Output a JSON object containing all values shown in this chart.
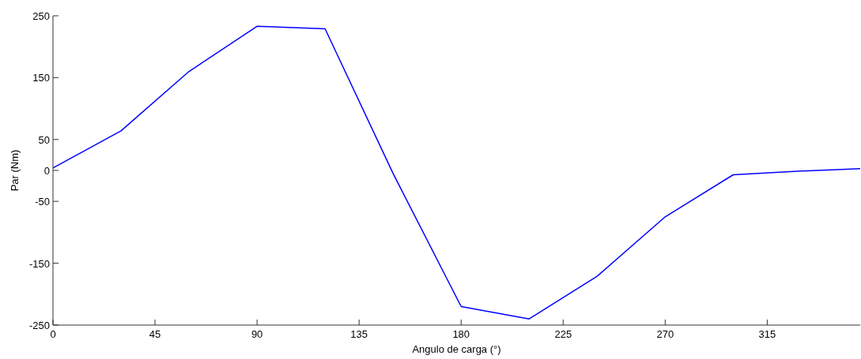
{
  "chart_data": {
    "type": "line",
    "xlabel": "Angulo de carga (°)",
    "ylabel": "Par (Nm)",
    "x": [
      0,
      30,
      60,
      90,
      120,
      150,
      180,
      210,
      240,
      270,
      300,
      330,
      356
    ],
    "series": [
      {
        "color": "#0000ff",
        "values": [
          4,
          64,
          160,
          233,
          229,
          -5,
          -220,
          -240,
          -171,
          -75,
          -7,
          -1,
          3
        ]
      }
    ],
    "xlim": [
      0,
      356
    ],
    "xticks": [
      0,
      45,
      90,
      135,
      180,
      225,
      270,
      315
    ],
    "ylim": [
      -250,
      250
    ],
    "yticks": [
      -250,
      -150,
      -50,
      0,
      50,
      150,
      250
    ]
  }
}
